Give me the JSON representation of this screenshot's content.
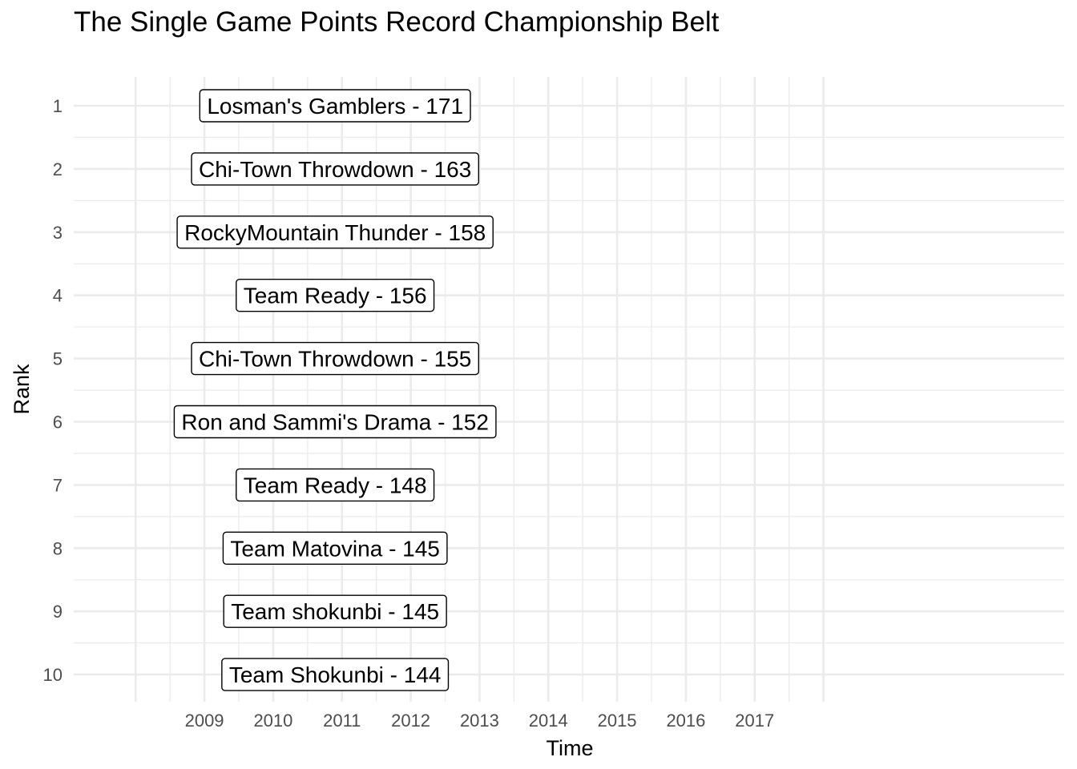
{
  "chart_data": {
    "type": "table",
    "title": "The Single Game Points Record Championship Belt",
    "xlabel": "Time",
    "ylabel": "Rank",
    "x_ticks": [
      "2009",
      "2010",
      "2011",
      "2012",
      "2013",
      "2014",
      "2015",
      "2016",
      "2017"
    ],
    "xlim": [
      2007.1,
      2021.5
    ],
    "ranks": [
      1,
      2,
      3,
      4,
      5,
      6,
      7,
      8,
      9,
      10
    ],
    "entries": [
      {
        "rank": 1,
        "team": "Losman's Gamblers",
        "points": 171,
        "label": "Losman's Gamblers - 171"
      },
      {
        "rank": 2,
        "team": "Chi-Town Throwdown",
        "points": 163,
        "label": "Chi-Town Throwdown - 163"
      },
      {
        "rank": 3,
        "team": "RockyMountain Thunder",
        "points": 158,
        "label": "RockyMountain Thunder - 158"
      },
      {
        "rank": 4,
        "team": "Team Ready",
        "points": 156,
        "label": "Team Ready - 156"
      },
      {
        "rank": 5,
        "team": "Chi-Town Throwdown",
        "points": 155,
        "label": "Chi-Town Throwdown - 155"
      },
      {
        "rank": 6,
        "team": "Ron and Sammi's Drama",
        "points": 152,
        "label": "Ron and Sammi's Drama - 152"
      },
      {
        "rank": 7,
        "team": "Team Ready",
        "points": 148,
        "label": "Team Ready - 148"
      },
      {
        "rank": 8,
        "team": "Team Matovina",
        "points": 145,
        "label": "Team Matovina - 145"
      },
      {
        "rank": 9,
        "team": "Team shokunbi",
        "points": 145,
        "label": "Team shokunbi - 145"
      },
      {
        "rank": 10,
        "team": "Team Shokunbi",
        "points": 144,
        "label": "Team Shokunbi - 144"
      }
    ],
    "label_x": 2010.9,
    "grid": true,
    "colors": {
      "grid": "#ebebeb",
      "text": "#000000",
      "tick": "#4d4d4d",
      "box_fill": "#ffffff",
      "box_stroke": "#000000"
    }
  }
}
